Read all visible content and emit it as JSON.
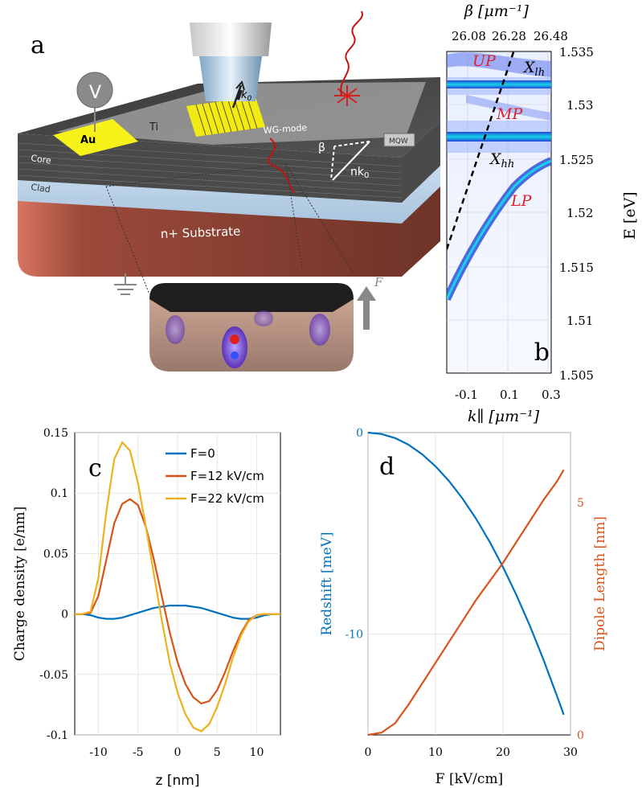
{
  "figure": {
    "panel_a": {
      "letter": "a",
      "voltage_label": "V",
      "au_label": "Au",
      "ti_label": "Ti",
      "k0_label": "k",
      "k0_sub": "0",
      "wg_mode_label": "WG-mode",
      "mqw_label": "MQW",
      "core_label": "Core",
      "clad_label": "Clad",
      "beta_label": "β",
      "nk0_label": "nk",
      "nk0_sub": "0",
      "substrate_label": "n+ Substrate",
      "field_label": "F"
    },
    "panel_b": {
      "letter": "b",
      "top_axis_label": "β [μm⁻¹]",
      "bottom_axis_label": "k∥ [μm⁻¹]",
      "right_axis_label": "E [eV]",
      "top_ticks": [
        "26.08",
        "26.28",
        "26.48"
      ],
      "bottom_ticks": [
        "-0.1",
        "0.1",
        "0.3"
      ],
      "right_ticks": [
        "1.535",
        "1.53",
        "1.525",
        "1.52",
        "1.515",
        "1.51",
        "1.505"
      ],
      "labels": {
        "up": "UP",
        "mp": "MP",
        "lp": "LP",
        "xlh": "X",
        "xlh_sub": "lh",
        "xhh": "X",
        "xhh_sub": "hh"
      },
      "colors": {
        "polariton": "#1a3fd9",
        "exciton_line": "#16d2e6",
        "annotation": "#e0202a"
      }
    }
  },
  "chart_data": [
    {
      "type": "line",
      "panel": "c",
      "ylabel": "Charge density [e/nm]",
      "xlabel": "z [nm]",
      "xlim": [
        -13,
        13
      ],
      "ylim": [
        -0.1,
        0.15
      ],
      "xticks": [
        "-10",
        "-5",
        "0",
        "5",
        "10"
      ],
      "yticks": [
        "0.15",
        "0.1",
        "0.05",
        "0",
        "-0.05",
        "-0.1"
      ],
      "grid": true,
      "legend_position": "top-right",
      "x": [
        -13,
        -12,
        -11,
        -10,
        -9,
        -8,
        -7,
        -6,
        -5,
        -4,
        -3,
        -2,
        -1,
        0,
        1,
        2,
        3,
        4,
        5,
        6,
        7,
        8,
        9,
        10,
        11,
        12,
        13
      ],
      "series": [
        {
          "name": "F=0",
          "color": "#0072bd",
          "values": [
            0,
            0,
            -0.001,
            -0.003,
            -0.004,
            -0.004,
            -0.003,
            -0.001,
            0.001,
            0.003,
            0.005,
            0.006,
            0.007,
            0.007,
            0.007,
            0.006,
            0.005,
            0.003,
            0.001,
            -0.001,
            -0.003,
            -0.004,
            -0.004,
            -0.003,
            -0.001,
            0,
            0
          ]
        },
        {
          "name": "F=12 kV/cm",
          "color": "#d95319",
          "values": [
            0,
            0,
            0.001,
            0.015,
            0.045,
            0.075,
            0.091,
            0.095,
            0.09,
            0.072,
            0.045,
            0.015,
            -0.015,
            -0.04,
            -0.058,
            -0.069,
            -0.074,
            -0.072,
            -0.063,
            -0.048,
            -0.031,
            -0.016,
            -0.005,
            -0.001,
            0,
            0,
            0
          ]
        },
        {
          "name": "F=22 kV/cm",
          "color": "#edb120",
          "values": [
            0,
            0,
            0.002,
            0.03,
            0.085,
            0.128,
            0.142,
            0.135,
            0.108,
            0.072,
            0.033,
            -0.005,
            -0.04,
            -0.065,
            -0.083,
            -0.094,
            -0.097,
            -0.091,
            -0.077,
            -0.058,
            -0.036,
            -0.018,
            -0.006,
            -0.001,
            0,
            0,
            0
          ]
        }
      ]
    },
    {
      "type": "line",
      "panel": "d",
      "xlabel": "F [kV/cm]",
      "ylabel_left": "Redshift [meV]",
      "ylabel_right": "Dipole Length [nm]",
      "xlim": [
        0,
        30
      ],
      "ylim_left": [
        -15,
        0
      ],
      "ylim_right": [
        0,
        6.5
      ],
      "xticks": [
        "0",
        "10",
        "20",
        "30"
      ],
      "yticks_left": [
        "0",
        "-10"
      ],
      "yticks_right": [
        "5",
        "0"
      ],
      "grid": true,
      "x": [
        0,
        2,
        4,
        6,
        8,
        10,
        12,
        14,
        16,
        18,
        20,
        22,
        24,
        26,
        28,
        29
      ],
      "series": [
        {
          "name": "",
          "axis": "left",
          "color": "#0072bd",
          "values": [
            0,
            -0.07,
            -0.27,
            -0.6,
            -1.07,
            -1.67,
            -2.4,
            -3.27,
            -4.27,
            -5.4,
            -6.67,
            -8.07,
            -9.6,
            -11.27,
            -13.07,
            -14.0
          ]
        },
        {
          "name": "",
          "axis": "right",
          "color": "#d95319",
          "values": [
            0,
            0.05,
            0.25,
            0.65,
            1.1,
            1.55,
            2.0,
            2.45,
            2.9,
            3.3,
            3.7,
            4.15,
            4.6,
            5.05,
            5.45,
            5.7
          ]
        }
      ]
    }
  ],
  "panel_letters": {
    "c": "c",
    "d": "d"
  }
}
